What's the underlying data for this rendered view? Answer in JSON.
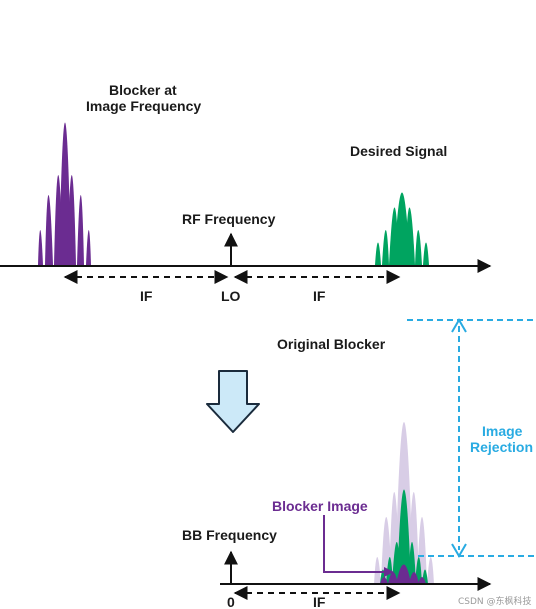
{
  "labels": {
    "blocker_at_image_line1": "Blocker at",
    "blocker_at_image_line2": "Image Frequency",
    "desired_signal": "Desired Signal",
    "rf_frequency": "RF Frequency",
    "if_left": "IF",
    "lo": "LO",
    "if_right": "IF",
    "original_blocker": "Original Blocker",
    "image_rejection_line1": "Image",
    "image_rejection_line2": "Rejection",
    "blocker_image": "Blocker Image",
    "bb_frequency": "BB Frequency",
    "zero": "0",
    "if_bottom": "IF",
    "watermark": "CSDN @东枫科技"
  },
  "colors": {
    "purple": "#6b2c91",
    "green": "#00a460",
    "lavender": "#d8cde6",
    "cyan": "#29abe2",
    "arrow_fill": "#cce9f8",
    "arrow_stroke": "#1a2b3c",
    "axis": "#111111"
  },
  "icons": {
    "down_arrow": "down-arrow-icon"
  }
}
